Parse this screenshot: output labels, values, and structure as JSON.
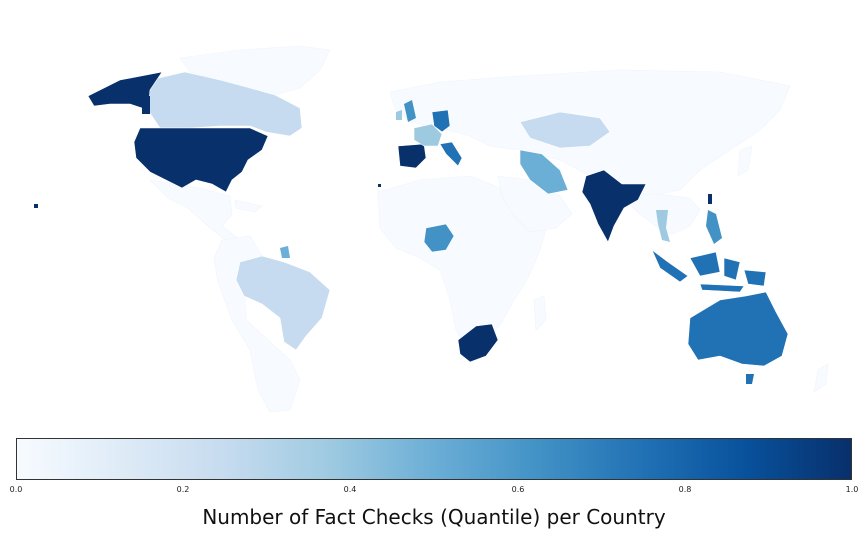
{
  "legend": {
    "title": "Number of Fact Checks (Quantile) per Country",
    "ticks": [
      "0.0",
      "0.2",
      "0.4",
      "0.6",
      "0.8",
      "1.0"
    ],
    "colormap": [
      "#f7fbff",
      "#deebf7",
      "#c6dbef",
      "#9ecae1",
      "#6baed6",
      "#4292c6",
      "#2171b5",
      "#08519c",
      "#08306b"
    ]
  },
  "countries": [
    {
      "name": "United States",
      "value": 1.0
    },
    {
      "name": "Canada",
      "value": 0.2
    },
    {
      "name": "Alaska",
      "value": 1.0
    },
    {
      "name": "Brazil",
      "value": 0.2
    },
    {
      "name": "Guyana",
      "value": 0.5
    },
    {
      "name": "Spain",
      "value": 1.0
    },
    {
      "name": "France",
      "value": 0.45
    },
    {
      "name": "Germany",
      "value": 0.8
    },
    {
      "name": "Italy",
      "value": 0.8
    },
    {
      "name": "United Kingdom",
      "value": 0.6
    },
    {
      "name": "Ireland",
      "value": 0.4
    },
    {
      "name": "Kazakhstan",
      "value": 0.2
    },
    {
      "name": "Iran",
      "value": 0.45
    },
    {
      "name": "India",
      "value": 1.0
    },
    {
      "name": "Nigeria",
      "value": 0.65
    },
    {
      "name": "South Africa",
      "value": 1.0
    },
    {
      "name": "Thailand",
      "value": 0.3
    },
    {
      "name": "Philippines",
      "value": 0.55
    },
    {
      "name": "Indonesia",
      "value": 0.8
    },
    {
      "name": "Australia",
      "value": 0.8
    }
  ]
}
